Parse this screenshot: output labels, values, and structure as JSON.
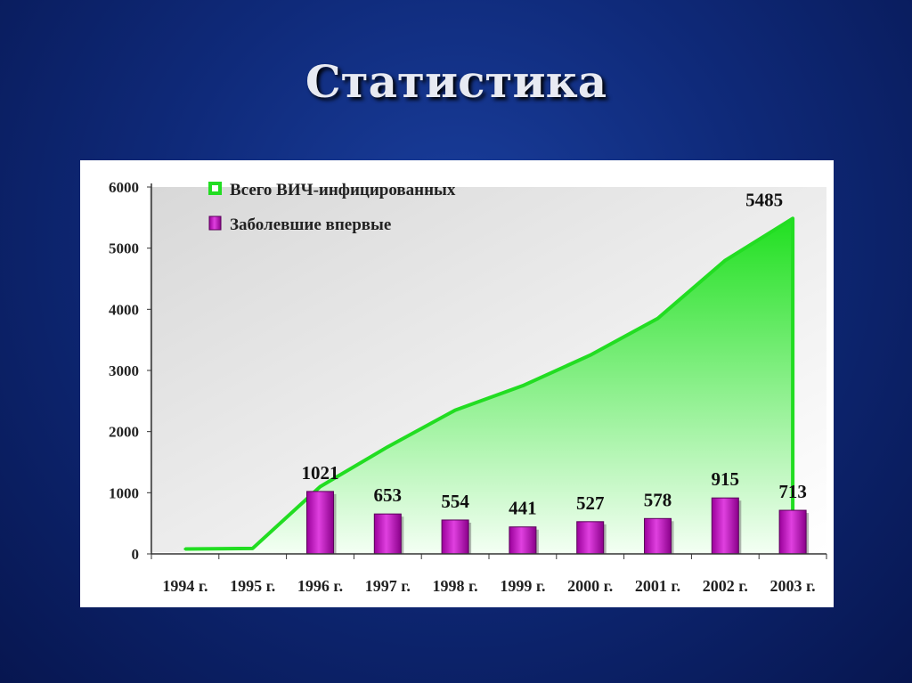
{
  "slide": {
    "title": "Статистика"
  },
  "chart_data": {
    "type": "bar+area",
    "categories": [
      "1994 г.",
      "1995 г.",
      "1996 г.",
      "1997 г.",
      "1998 г.",
      "1999 г.",
      "2000 г.",
      "2001 г.",
      "2002 г.",
      "2003 г."
    ],
    "series": [
      {
        "name": "Всего ВИЧ-инфицированных",
        "type": "area",
        "color": "#2be82b",
        "values": [
          80,
          90,
          1100,
          1750,
          2350,
          2750,
          3250,
          3850,
          4800,
          5485
        ],
        "labels": [
          "",
          "",
          "",
          "",
          "",
          "",
          "",
          "",
          "",
          "5485"
        ]
      },
      {
        "name": "Заболевшие впервые",
        "type": "bar",
        "color": "#c000c0",
        "values": [
          null,
          null,
          1021,
          653,
          554,
          441,
          527,
          578,
          915,
          713
        ],
        "labels": [
          "",
          "",
          "1021",
          "653",
          "554",
          "441",
          "527",
          "578",
          "915",
          "713"
        ]
      }
    ],
    "yticks": [
      "6000",
      "5000",
      "4000",
      "3000",
      "2000",
      "1000",
      "0"
    ],
    "ylim": [
      0,
      6000
    ],
    "xlabel": "",
    "ylabel": "",
    "legend": "top-left",
    "grid": false
  }
}
